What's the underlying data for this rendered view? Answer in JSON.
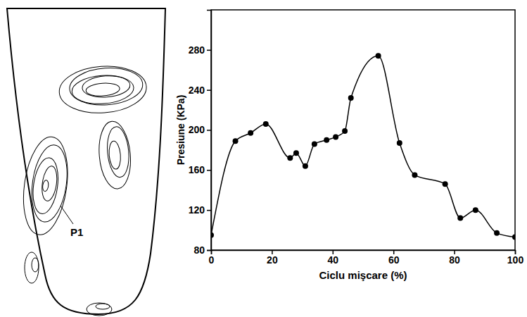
{
  "chart_data": {
    "type": "line",
    "x": [
      0,
      8,
      13,
      18,
      26,
      28,
      31,
      34,
      38,
      41,
      44,
      46,
      55,
      62,
      67,
      77,
      82,
      87,
      94,
      100
    ],
    "values": [
      95,
      189,
      197,
      206,
      172,
      177,
      164,
      186,
      190,
      193,
      199,
      232,
      274,
      187,
      155,
      146,
      112,
      120,
      97,
      93
    ],
    "color": "#000000",
    "marker": "circle",
    "line_style": "solid",
    "x_label": "Ciclu mişcare (%)",
    "y_label": "Presiune (KPa)",
    "xlim": [
      0,
      100
    ],
    "xticks": [
      0,
      20,
      40,
      60,
      80,
      100
    ],
    "ylim": [
      80,
      320
    ],
    "yticks": [
      80,
      120,
      160,
      200,
      240,
      280
    ],
    "grid": false
  },
  "diagram": {
    "label": "P1"
  }
}
